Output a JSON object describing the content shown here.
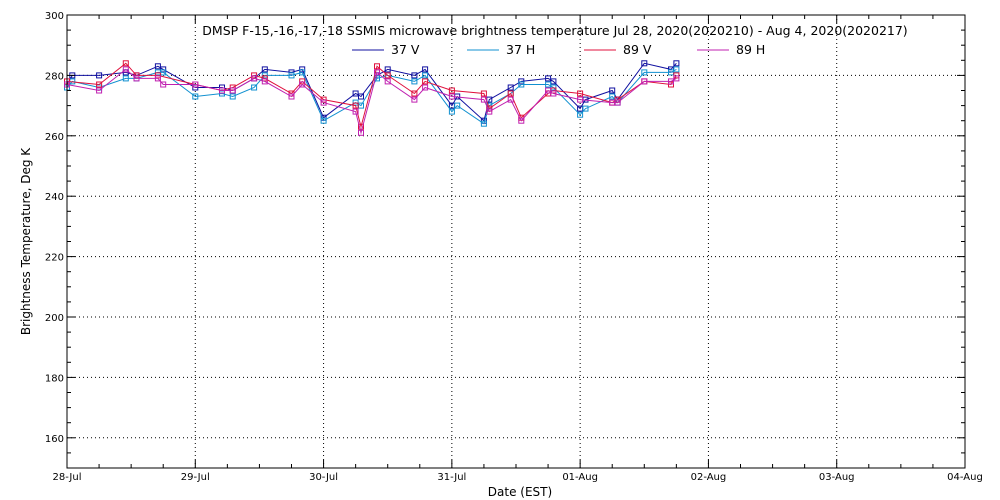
{
  "chart_data": {
    "type": "line",
    "title": "DMSP F-15,-16,-17,-18 SSMIS microwave brightness temperature Jul 28, 2020(2020210) - Aug  4, 2020(2020217)",
    "xlabel": "Date (EST)",
    "ylabel": "Brightness Temperature, Deg K",
    "xlim": [
      "2020-07-28T00:00",
      "2020-08-04T00:00"
    ],
    "ylim": [
      150,
      300
    ],
    "x_tick_labels": [
      "28-Jul",
      "29-Jul",
      "30-Jul",
      "31-Jul",
      "01-Aug",
      "02-Aug",
      "03-Aug",
      "04-Aug"
    ],
    "y_ticks": [
      160,
      180,
      200,
      220,
      240,
      260,
      280,
      300
    ],
    "grid": true,
    "legend_position": "top-center",
    "series": [
      {
        "name": "37 V",
        "color": "#1010a0",
        "points": [
          [
            "2020-07-28T00:00",
            277
          ],
          [
            "2020-07-28T01:00",
            280
          ],
          [
            "2020-07-28T06:00",
            280
          ],
          [
            "2020-07-28T11:00",
            281
          ],
          [
            "2020-07-28T13:00",
            280
          ],
          [
            "2020-07-28T17:00",
            283
          ],
          [
            "2020-07-28T18:00",
            282
          ],
          [
            "2020-07-29T00:00",
            276
          ],
          [
            "2020-07-29T05:00",
            276
          ],
          [
            "2020-07-29T07:00",
            275
          ],
          [
            "2020-07-29T11:00",
            279
          ],
          [
            "2020-07-29T13:00",
            282
          ],
          [
            "2020-07-29T18:00",
            281
          ],
          [
            "2020-07-29T20:00",
            282
          ],
          [
            "2020-07-30T00:00",
            266
          ],
          [
            "2020-07-30T06:00",
            274
          ],
          [
            "2020-07-30T07:00",
            273
          ],
          [
            "2020-07-30T10:00",
            280
          ],
          [
            "2020-07-30T12:00",
            282
          ],
          [
            "2020-07-30T17:00",
            280
          ],
          [
            "2020-07-30T19:00",
            282
          ],
          [
            "2020-07-31T00:00",
            270
          ],
          [
            "2020-07-31T01:00",
            273
          ],
          [
            "2020-07-31T06:00",
            265
          ],
          [
            "2020-07-31T07:00",
            272
          ],
          [
            "2020-07-31T11:00",
            276
          ],
          [
            "2020-07-31T13:00",
            278
          ],
          [
            "2020-07-31T18:00",
            279
          ],
          [
            "2020-07-31T19:00",
            278
          ],
          [
            "2020-08-01T00:00",
            269
          ],
          [
            "2020-08-01T01:00",
            272
          ],
          [
            "2020-08-01T06:00",
            275
          ],
          [
            "2020-08-01T07:00",
            272
          ],
          [
            "2020-08-01T12:00",
            284
          ],
          [
            "2020-08-01T17:00",
            282
          ],
          [
            "2020-08-01T18:00",
            284
          ]
        ]
      },
      {
        "name": "37 H",
        "color": "#1090d0",
        "points": [
          [
            "2020-07-28T00:00",
            276
          ],
          [
            "2020-07-28T01:00",
            278
          ],
          [
            "2020-07-28T06:00",
            276
          ],
          [
            "2020-07-28T11:00",
            279
          ],
          [
            "2020-07-28T13:00",
            279
          ],
          [
            "2020-07-28T17:00",
            281
          ],
          [
            "2020-07-28T18:00",
            281
          ],
          [
            "2020-07-29T00:00",
            273
          ],
          [
            "2020-07-29T05:00",
            274
          ],
          [
            "2020-07-29T07:00",
            273
          ],
          [
            "2020-07-29T11:00",
            276
          ],
          [
            "2020-07-29T13:00",
            280
          ],
          [
            "2020-07-29T18:00",
            280
          ],
          [
            "2020-07-29T20:00",
            281
          ],
          [
            "2020-07-30T00:00",
            265
          ],
          [
            "2020-07-30T06:00",
            271
          ],
          [
            "2020-07-30T07:00",
            270
          ],
          [
            "2020-07-30T10:00",
            279
          ],
          [
            "2020-07-30T12:00",
            280
          ],
          [
            "2020-07-30T17:00",
            278
          ],
          [
            "2020-07-30T19:00",
            280
          ],
          [
            "2020-07-31T00:00",
            268
          ],
          [
            "2020-07-31T01:00",
            270
          ],
          [
            "2020-07-31T06:00",
            264
          ],
          [
            "2020-07-31T07:00",
            270
          ],
          [
            "2020-07-31T11:00",
            274
          ],
          [
            "2020-07-31T13:00",
            277
          ],
          [
            "2020-07-31T18:00",
            277
          ],
          [
            "2020-07-31T19:00",
            276
          ],
          [
            "2020-08-01T00:00",
            267
          ],
          [
            "2020-08-01T01:00",
            269
          ],
          [
            "2020-08-01T06:00",
            273
          ],
          [
            "2020-08-01T07:00",
            271
          ],
          [
            "2020-08-01T12:00",
            281
          ],
          [
            "2020-08-01T17:00",
            281
          ],
          [
            "2020-08-01T18:00",
            282
          ]
        ]
      },
      {
        "name": "89 V",
        "color": "#e0103c",
        "points": [
          [
            "2020-07-28T00:00",
            278
          ],
          [
            "2020-07-28T06:00",
            277
          ],
          [
            "2020-07-28T11:00",
            284
          ],
          [
            "2020-07-28T13:00",
            280
          ],
          [
            "2020-07-28T17:00",
            280
          ],
          [
            "2020-07-29T00:00",
            277
          ],
          [
            "2020-07-29T05:00",
            275
          ],
          [
            "2020-07-29T07:00",
            276
          ],
          [
            "2020-07-29T11:00",
            280
          ],
          [
            "2020-07-29T13:00",
            279
          ],
          [
            "2020-07-29T18:00",
            274
          ],
          [
            "2020-07-29T20:00",
            278
          ],
          [
            "2020-07-30T00:00",
            272
          ],
          [
            "2020-07-30T06:00",
            270
          ],
          [
            "2020-07-30T07:00",
            263
          ],
          [
            "2020-07-30T10:00",
            283
          ],
          [
            "2020-07-30T12:00",
            280
          ],
          [
            "2020-07-30T17:00",
            274
          ],
          [
            "2020-07-30T19:00",
            278
          ],
          [
            "2020-07-31T00:00",
            275
          ],
          [
            "2020-07-31T06:00",
            274
          ],
          [
            "2020-07-31T07:00",
            269
          ],
          [
            "2020-07-31T11:00",
            274
          ],
          [
            "2020-07-31T13:00",
            266
          ],
          [
            "2020-07-31T18:00",
            274
          ],
          [
            "2020-07-31T19:00",
            275
          ],
          [
            "2020-08-01T00:00",
            274
          ],
          [
            "2020-08-01T06:00",
            271
          ],
          [
            "2020-08-01T07:00",
            272
          ],
          [
            "2020-08-01T12:00",
            278
          ],
          [
            "2020-08-01T17:00",
            277
          ],
          [
            "2020-08-01T18:00",
            280
          ]
        ]
      },
      {
        "name": "89 H",
        "color": "#c020b0",
        "points": [
          [
            "2020-07-28T00:00",
            277
          ],
          [
            "2020-07-28T06:00",
            275
          ],
          [
            "2020-07-28T11:00",
            282
          ],
          [
            "2020-07-28T13:00",
            279
          ],
          [
            "2020-07-28T17:00",
            279
          ],
          [
            "2020-07-28T18:00",
            277
          ],
          [
            "2020-07-29T00:00",
            277
          ],
          [
            "2020-07-29T05:00",
            275
          ],
          [
            "2020-07-29T07:00",
            275
          ],
          [
            "2020-07-29T11:00",
            279
          ],
          [
            "2020-07-29T13:00",
            278
          ],
          [
            "2020-07-29T18:00",
            273
          ],
          [
            "2020-07-29T20:00",
            277
          ],
          [
            "2020-07-30T00:00",
            271
          ],
          [
            "2020-07-30T06:00",
            268
          ],
          [
            "2020-07-30T07:00",
            261
          ],
          [
            "2020-07-30T10:00",
            281
          ],
          [
            "2020-07-30T12:00",
            278
          ],
          [
            "2020-07-30T17:00",
            272
          ],
          [
            "2020-07-30T19:00",
            276
          ],
          [
            "2020-07-31T00:00",
            273
          ],
          [
            "2020-07-31T06:00",
            272
          ],
          [
            "2020-07-31T07:00",
            268
          ],
          [
            "2020-07-31T11:00",
            272
          ],
          [
            "2020-07-31T13:00",
            265
          ],
          [
            "2020-07-31T18:00",
            275
          ],
          [
            "2020-07-31T19:00",
            274
          ],
          [
            "2020-08-01T00:00",
            272
          ],
          [
            "2020-08-01T06:00",
            271
          ],
          [
            "2020-08-01T07:00",
            271
          ],
          [
            "2020-08-01T12:00",
            278
          ],
          [
            "2020-08-01T17:00",
            278
          ],
          [
            "2020-08-01T18:00",
            279
          ]
        ]
      }
    ]
  }
}
